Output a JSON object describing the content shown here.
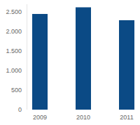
{
  "chart_data": {
    "type": "bar",
    "categories": [
      "2009",
      "2010",
      "2011"
    ],
    "values": [
      2450,
      2620,
      2290
    ],
    "color": "#0b4a85",
    "ylim": [
      0,
      2700
    ],
    "yticks": [
      0,
      500,
      {
        "value": 1000,
        "label": "1.000"
      },
      {
        "value": 1500,
        "label": "1.500"
      },
      {
        "value": 2000,
        "label": "2.000"
      },
      {
        "value": 2500,
        "label": "2.500"
      }
    ],
    "grid": false
  }
}
